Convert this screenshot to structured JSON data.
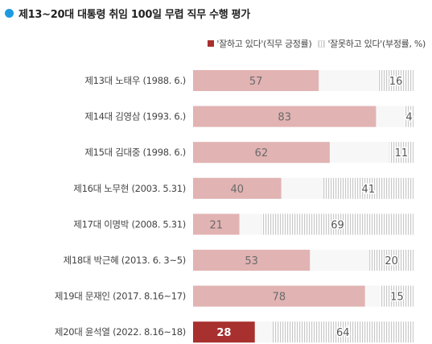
{
  "title": "제13~20대 대통령 취임 100일 무렵 직무 수행 평가",
  "legend": {
    "approve": "'잘하고 있다'(직무 긍정률)",
    "disapprove": "'잘못하고 있다'(부정률, %)"
  },
  "colors": {
    "approve": "#e2b3b3",
    "approve_highlight": "#a8302f",
    "disapprove_line": "#c8c8c8",
    "accent_dot": "#1e9be0"
  },
  "chart_data": {
    "type": "bar",
    "orientation": "horizontal",
    "stacked": false,
    "categories": [
      "제13대 노태우 (1988. 6.)",
      "제14대 김영삼 (1993. 6.)",
      "제15대 김대중 (1998. 6.)",
      "제16대 노무현 (2003. 5.31)",
      "제17대 이명박 (2008. 5.31)",
      "제18대 박근혜 (2013. 6. 3~5)",
      "제19대 문재인 (2017. 8.16~17)",
      "제20대 윤석열 (2022. 8.16~18)"
    ],
    "series": [
      {
        "name": "'잘하고 있다'(직무 긍정률)",
        "values": [
          57,
          83,
          62,
          40,
          21,
          53,
          78,
          28
        ]
      },
      {
        "name": "'잘못하고 있다'(부정률, %)",
        "values": [
          16,
          4,
          11,
          41,
          69,
          20,
          15,
          64
        ]
      }
    ],
    "xlim": [
      0,
      100
    ],
    "highlight_index": 7
  }
}
